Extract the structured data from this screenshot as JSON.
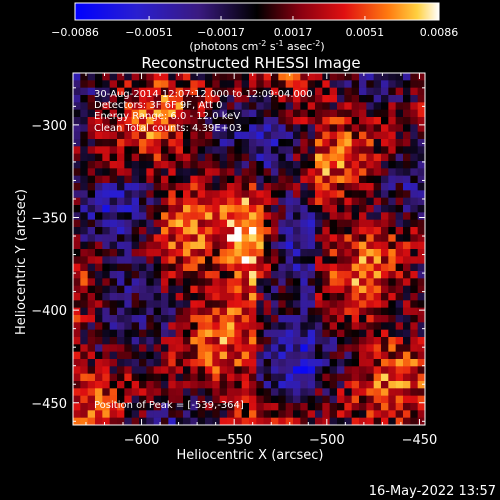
{
  "colorbar": {
    "ticks": [
      "-0.0086",
      "-0.0051",
      "-0.0017",
      "0.0017",
      "0.0051",
      "0.0086"
    ],
    "unit_text": "(photons cm",
    "unit_sup1": "-2",
    "unit_mid": " s",
    "unit_sup2": "-1",
    "unit_end": " asec",
    "unit_sup3": "-2",
    "unit_close": ")"
  },
  "chart_data": {
    "type": "heatmap",
    "title": "Reconstructed RHESSI Image",
    "xlabel": "Heliocentric X (arcsec)",
    "ylabel": "Heliocentric Y (arcsec)",
    "xlim": [
      -637,
      -447
    ],
    "ylim": [
      -462,
      -272
    ],
    "xticks": [
      -600,
      -550,
      -500,
      -450
    ],
    "xtick_labels": [
      "−600",
      "−550",
      "−500",
      "−450"
    ],
    "yticks": [
      -300,
      -350,
      -400,
      -450
    ],
    "ytick_labels": [
      "−300",
      "−350",
      "−400",
      "−450"
    ],
    "zlim": [
      -0.0086,
      0.0086
    ],
    "peak": {
      "x": -539,
      "y": -364
    },
    "annotations": {
      "line1": "30-Aug-2014 12:07:12.000 to 12:09:04.000",
      "line2": "Detectors: 3F 6F 9F, Att 0",
      "line3": "Energy Range: 6.0 - 12.0 keV",
      "line4": "Clean     Total counts: 4.39E+03",
      "peak_label": "Position of Peak = [-539,-364]"
    }
  },
  "footer": {
    "timestamp": "16-May-2022 13:57"
  }
}
